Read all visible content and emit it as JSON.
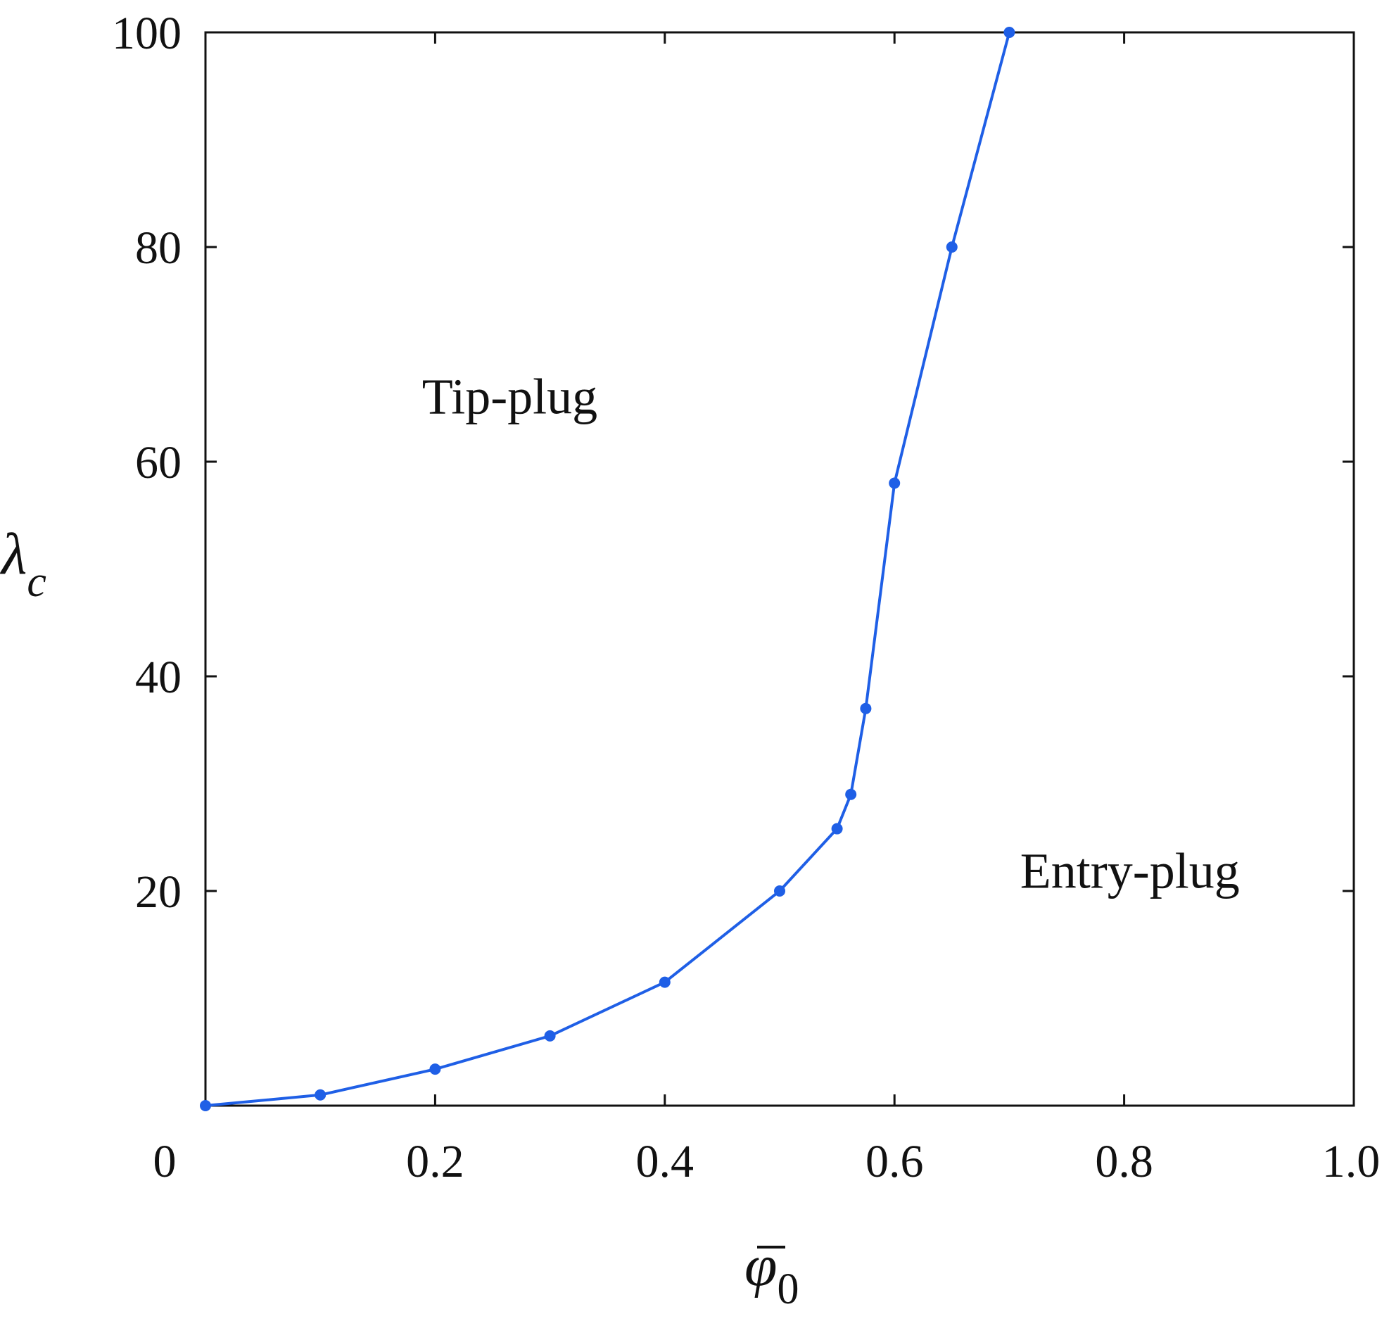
{
  "chart_data": {
    "type": "line",
    "title": "",
    "xlabel": {
      "base": "φ",
      "sub": "0",
      "overbar": true
    },
    "ylabel": {
      "base": "λ",
      "sub": "c"
    },
    "xlim": [
      0,
      1.0
    ],
    "ylim": [
      0,
      100
    ],
    "xticks": [
      {
        "value": 0,
        "label": "0"
      },
      {
        "value": 0.2,
        "label": "0.2"
      },
      {
        "value": 0.4,
        "label": "0.4"
      },
      {
        "value": 0.6,
        "label": "0.6"
      },
      {
        "value": 0.8,
        "label": "0.8"
      },
      {
        "value": 1.0,
        "label": "1.0"
      }
    ],
    "yticks": [
      {
        "value": 20,
        "label": "20"
      },
      {
        "value": 40,
        "label": "40"
      },
      {
        "value": 60,
        "label": "60"
      },
      {
        "value": 80,
        "label": "80"
      },
      {
        "value": 100,
        "label": "100"
      }
    ],
    "grid": false,
    "legend": "none",
    "series": [
      {
        "color": "#1f5fe6",
        "marker": "circle",
        "x": [
          0.0,
          0.1,
          0.2,
          0.3,
          0.4,
          0.5,
          0.55,
          0.562,
          0.575,
          0.6,
          0.65,
          0.7
        ],
        "y": [
          0.0,
          1.0,
          3.4,
          6.5,
          11.5,
          20.0,
          25.8,
          29.0,
          37.0,
          58.0,
          80.0,
          100.0
        ]
      }
    ],
    "annotations": [
      {
        "text": "Tip-plug",
        "x": 0.265,
        "y": 64.5
      },
      {
        "text": "Entry-plug",
        "x": 0.805,
        "y": 20.3
      }
    ]
  }
}
